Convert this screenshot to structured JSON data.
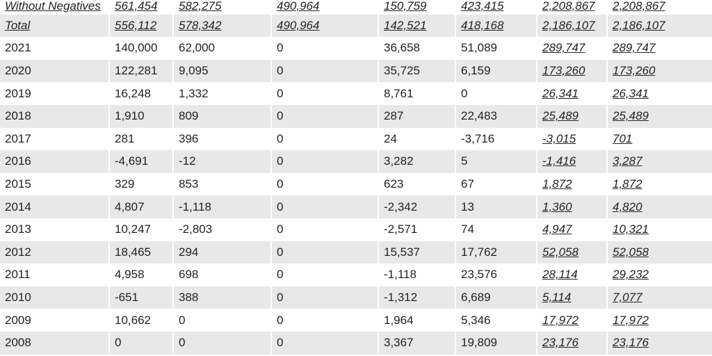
{
  "summary_rows": [
    {
      "label": "Without Negatives",
      "values": [
        "561,454",
        "582,275",
        "490,964",
        "150,759",
        "423,415",
        "2,208,867",
        "2,208,867"
      ]
    },
    {
      "label": "Total",
      "values": [
        "556,112",
        "578,342",
        "490,964",
        "142,521",
        "418,168",
        "2,186,107",
        "2,186,107"
      ]
    }
  ],
  "rows": [
    {
      "year": "2021",
      "values": [
        "140,000",
        "62,000",
        "0",
        "36,658",
        "51,089",
        "289,747",
        "289,747"
      ]
    },
    {
      "year": "2020",
      "values": [
        "122,281",
        "9,095",
        "0",
        "35,725",
        "6,159",
        "173,260",
        "173,260"
      ]
    },
    {
      "year": "2019",
      "values": [
        "16,248",
        "1,332",
        "0",
        "8,761",
        "0",
        "26,341",
        "26,341"
      ]
    },
    {
      "year": "2018",
      "values": [
        "1,910",
        "809",
        "0",
        "287",
        "22,483",
        "25,489",
        "25,489"
      ]
    },
    {
      "year": "2017",
      "values": [
        "281",
        "396",
        "0",
        "24",
        "-3,716",
        "-3,015",
        "701"
      ]
    },
    {
      "year": "2016",
      "values": [
        "-4,691",
        "-12",
        "0",
        "3,282",
        "5",
        "-1,416",
        "3,287"
      ]
    },
    {
      "year": "2015",
      "values": [
        "329",
        "853",
        "0",
        "623",
        "67",
        "1,872",
        "1,872"
      ]
    },
    {
      "year": "2014",
      "values": [
        "4,807",
        "-1,118",
        "0",
        "-2,342",
        "13",
        "1,360",
        "4,820"
      ]
    },
    {
      "year": "2013",
      "values": [
        "10,247",
        "-2,803",
        "0",
        "-2,571",
        "74",
        "4,947",
        "10,321"
      ]
    },
    {
      "year": "2012",
      "values": [
        "18,465",
        "294",
        "0",
        "15,537",
        "17,762",
        "52,058",
        "52,058"
      ]
    },
    {
      "year": "2011",
      "values": [
        "4,958",
        "698",
        "0",
        "-1,118",
        "23,576",
        "28,114",
        "29,232"
      ]
    },
    {
      "year": "2010",
      "values": [
        "-651",
        "388",
        "0",
        "-1,312",
        "6,689",
        "5,114",
        "7,077"
      ]
    },
    {
      "year": "2009",
      "values": [
        "10,662",
        "0",
        "0",
        "1,964",
        "5,346",
        "17,972",
        "17,972"
      ]
    },
    {
      "year": "2008",
      "values": [
        "0",
        "0",
        "0",
        "3,367",
        "19,809",
        "23,176",
        "23,176"
      ]
    }
  ]
}
